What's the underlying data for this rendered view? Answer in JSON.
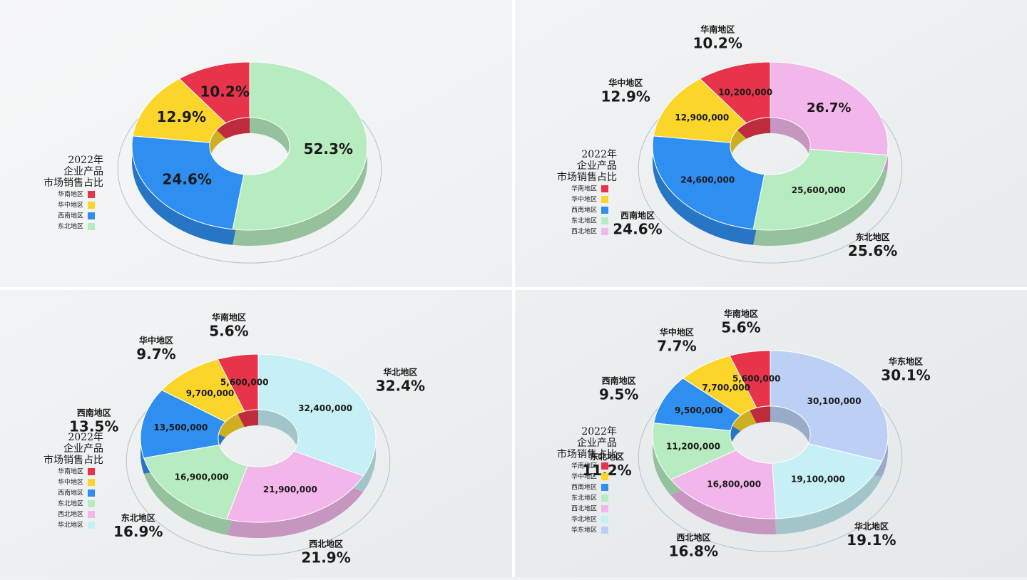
{
  "chart_data": [
    {
      "type": "donut",
      "title_lines": [
        "2022年",
        "企业产品",
        "市场销售占比"
      ],
      "categories": [
        "华南地区",
        "华中地区",
        "西南地区",
        "东北地区"
      ],
      "values": [
        10.2,
        12.9,
        24.6,
        52.3
      ],
      "value_labels": [
        "10.2%",
        "12.9%",
        "24.6%",
        "52.3%"
      ],
      "colors": [
        "#e8344a",
        "#fcd52a",
        "#2f8ff0",
        "#b7ebc0"
      ]
    },
    {
      "type": "donut",
      "title_lines": [
        "2022年",
        "企业产品",
        "市场销售占比"
      ],
      "categories": [
        "华南地区",
        "华中地区",
        "西南地区",
        "东北地区",
        "西北地区"
      ],
      "values": [
        10.2,
        12.9,
        24.6,
        25.6,
        26.7
      ],
      "value_labels": [
        "10.2%",
        "12.9%",
        "24.6%",
        "25.6%",
        "26.7%"
      ],
      "amounts": [
        10200000,
        12900000,
        24600000,
        25600000,
        null
      ],
      "amount_labels": [
        "10,200,000",
        "12,900,000",
        "24,600,000",
        "25,600,000",
        null
      ],
      "colors": [
        "#e8344a",
        "#fcd52a",
        "#2f8ff0",
        "#b7ebc0",
        "#f2b6ea"
      ]
    },
    {
      "type": "donut",
      "title_lines": [
        "2022年",
        "企业产品",
        "市场销售占比"
      ],
      "categories": [
        "华南地区",
        "华中地区",
        "西南地区",
        "东北地区",
        "西北地区",
        "华北地区"
      ],
      "values": [
        5.6,
        9.7,
        13.5,
        16.9,
        21.9,
        32.4
      ],
      "value_labels": [
        "5.6%",
        "9.7%",
        "13.5%",
        "16.9%",
        "21.9%",
        "32.4%"
      ],
      "amounts": [
        5600000,
        9700000,
        13500000,
        16900000,
        21900000,
        32400000
      ],
      "amount_labels": [
        "5,600,000",
        "9,700,000",
        "13,500,000",
        "16,900,000",
        "21,900,000",
        "32,400,000"
      ],
      "colors": [
        "#e8344a",
        "#fcd52a",
        "#2f8ff0",
        "#b7ebc0",
        "#f2b6ea",
        "#c6f0f5"
      ]
    },
    {
      "type": "donut",
      "title_lines": [
        "2022年",
        "企业产品",
        "市场销售占比"
      ],
      "categories": [
        "华南地区",
        "华中地区",
        "西南地区",
        "东北地区",
        "西北地区",
        "华北地区",
        "华东地区"
      ],
      "values": [
        5.6,
        7.7,
        9.5,
        11.2,
        16.8,
        19.1,
        30.1
      ],
      "value_labels": [
        "5.6%",
        "7.7%",
        "9.5%",
        "11.2%",
        "16.8%",
        "19.1%",
        "30.1%"
      ],
      "amounts": [
        5600000,
        7700000,
        9500000,
        11200000,
        16800000,
        19100000,
        30100000
      ],
      "amount_labels": [
        "5,600,000",
        "7,700,000",
        "9,500,000",
        "11,200,000",
        "16,800,000",
        "19,100,000",
        "30,100,000"
      ],
      "colors": [
        "#e8344a",
        "#fcd52a",
        "#2f8ff0",
        "#b7ebc0",
        "#f2b6ea",
        "#c6f0f5",
        "#bcd0f5"
      ]
    }
  ]
}
